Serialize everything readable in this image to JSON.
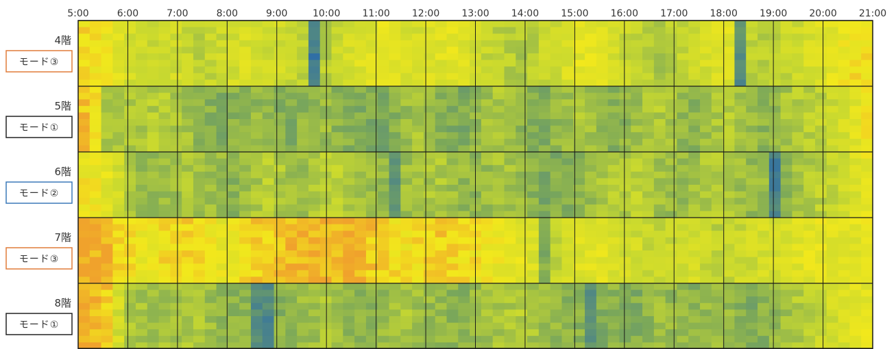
{
  "chart_data": {
    "type": "heatmap",
    "x_ticks": [
      "5:00",
      "6:00",
      "7:00",
      "8:00",
      "9:00",
      "10:00",
      "11:00",
      "12:00",
      "13:00",
      "14:00",
      "15:00",
      "16:00",
      "17:00",
      "18:00",
      "19:00",
      "20:00",
      "21:00"
    ],
    "x_range": [
      "5:00",
      "21:00"
    ],
    "legend": "none",
    "grid": true,
    "colors": {
      "low": "#2f6ea6",
      "mid_low": "#7aa75a",
      "mid": "#c9d92f",
      "high": "#f2e81c",
      "very_high": "#f0a22c"
    },
    "rows": [
      {
        "floor": "4階",
        "mode": "モード③",
        "mode_color": "#e07b39",
        "profile": [
          0.85,
          0.83,
          0.78,
          0.72,
          0.66,
          0.63,
          0.6,
          0.62,
          0.64,
          0.6,
          0.58,
          0.6,
          0.62,
          0.66,
          0.68,
          0.64,
          0.62,
          0.64,
          0.62,
          0.58,
          0.08,
          0.55,
          0.6,
          0.66,
          0.7,
          0.72,
          0.74,
          0.7,
          0.68,
          0.66,
          0.7,
          0.72,
          0.74,
          0.7,
          0.66,
          0.6,
          0.56,
          0.54,
          0.52,
          0.56,
          0.6,
          0.64,
          0.7,
          0.74,
          0.76,
          0.7,
          0.66,
          0.62,
          0.58,
          0.54,
          0.5,
          0.55,
          0.6,
          0.62,
          0.66,
          0.7,
          0.72,
          0.2,
          0.55,
          0.56,
          0.58,
          0.6,
          0.64,
          0.68,
          0.7,
          0.74,
          0.78,
          0.82,
          0.84
        ]
      },
      {
        "floor": "5階",
        "mode": "モード①",
        "mode_color": "#222222",
        "profile": [
          0.92,
          0.86,
          0.5,
          0.48,
          0.5,
          0.52,
          0.54,
          0.56,
          0.52,
          0.48,
          0.44,
          0.4,
          0.38,
          0.4,
          0.42,
          0.44,
          0.46,
          0.4,
          0.38,
          0.42,
          0.44,
          0.46,
          0.42,
          0.4,
          0.38,
          0.36,
          0.34,
          0.4,
          0.46,
          0.5,
          0.44,
          0.4,
          0.38,
          0.36,
          0.42,
          0.48,
          0.52,
          0.46,
          0.42,
          0.4,
          0.38,
          0.42,
          0.46,
          0.5,
          0.48,
          0.44,
          0.4,
          0.42,
          0.46,
          0.5,
          0.52,
          0.48,
          0.44,
          0.42,
          0.46,
          0.5,
          0.54,
          0.48,
          0.44,
          0.42,
          0.46,
          0.5,
          0.52,
          0.56,
          0.58,
          0.62,
          0.66,
          0.72,
          0.8
        ]
      },
      {
        "floor": "6階",
        "mode": "モード②",
        "mode_color": "#3a78b8",
        "profile": [
          0.8,
          0.78,
          0.74,
          0.66,
          0.52,
          0.46,
          0.44,
          0.46,
          0.48,
          0.5,
          0.48,
          0.46,
          0.44,
          0.42,
          0.46,
          0.5,
          0.54,
          0.52,
          0.48,
          0.46,
          0.5,
          0.54,
          0.56,
          0.52,
          0.48,
          0.46,
          0.44,
          0.2,
          0.46,
          0.48,
          0.5,
          0.52,
          0.46,
          0.44,
          0.42,
          0.46,
          0.5,
          0.48,
          0.46,
          0.4,
          0.36,
          0.38,
          0.4,
          0.42,
          0.46,
          0.5,
          0.52,
          0.54,
          0.56,
          0.52,
          0.48,
          0.46,
          0.44,
          0.48,
          0.52,
          0.54,
          0.5,
          0.46,
          0.44,
          0.46,
          0.12,
          0.44,
          0.48,
          0.52,
          0.56,
          0.6,
          0.64,
          0.7,
          0.76
        ]
      },
      {
        "floor": "7階",
        "mode": "モード③",
        "mode_color": "#e07b39",
        "profile": [
          0.98,
          0.97,
          0.96,
          0.88,
          0.82,
          0.78,
          0.8,
          0.84,
          0.86,
          0.88,
          0.86,
          0.8,
          0.76,
          0.8,
          0.84,
          0.88,
          0.9,
          0.92,
          0.94,
          0.96,
          0.95,
          0.94,
          0.93,
          0.95,
          0.94,
          0.9,
          0.86,
          0.84,
          0.82,
          0.84,
          0.86,
          0.88,
          0.86,
          0.84,
          0.82,
          0.8,
          0.78,
          0.76,
          0.74,
          0.7,
          0.38,
          0.6,
          0.66,
          0.7,
          0.72,
          0.74,
          0.7,
          0.66,
          0.64,
          0.62,
          0.6,
          0.62,
          0.64,
          0.66,
          0.62,
          0.58,
          0.6,
          0.62,
          0.64,
          0.66,
          0.68,
          0.7,
          0.72,
          0.74,
          0.76,
          0.74,
          0.72,
          0.74,
          0.76
        ]
      },
      {
        "floor": "8階",
        "mode": "モード①",
        "mode_color": "#222222",
        "profile": [
          0.96,
          0.94,
          0.9,
          0.66,
          0.52,
          0.48,
          0.46,
          0.48,
          0.5,
          0.52,
          0.5,
          0.46,
          0.44,
          0.42,
          0.4,
          0.2,
          0.16,
          0.4,
          0.44,
          0.46,
          0.48,
          0.5,
          0.46,
          0.44,
          0.42,
          0.4,
          0.44,
          0.48,
          0.5,
          0.48,
          0.46,
          0.44,
          0.42,
          0.4,
          0.44,
          0.48,
          0.5,
          0.52,
          0.54,
          0.5,
          0.46,
          0.44,
          0.42,
          0.4,
          0.22,
          0.38,
          0.42,
          0.4,
          0.38,
          0.42,
          0.46,
          0.44,
          0.42,
          0.4,
          0.44,
          0.48,
          0.46,
          0.38,
          0.36,
          0.4,
          0.44,
          0.48,
          0.52,
          0.56,
          0.6,
          0.64,
          0.68,
          0.72,
          0.76
        ]
      }
    ]
  }
}
